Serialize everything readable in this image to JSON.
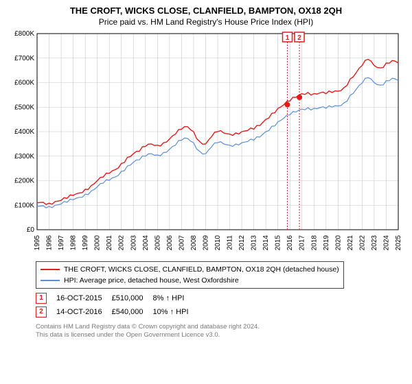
{
  "title": "THE CROFT, WICKS CLOSE, CLANFIELD, BAMPTON, OX18 2QH",
  "subtitle": "Price paid vs. HM Land Registry's House Price Index (HPI)",
  "chart": {
    "type": "line",
    "background_color": "#ffffff",
    "grid_color": "#c7c7c7",
    "axis_color": "#000000",
    "label_fontsize": 10,
    "x_range": [
      1995,
      2025
    ],
    "y_range": [
      0,
      800
    ],
    "y_ticks": [
      "£0",
      "£100K",
      "£200K",
      "£300K",
      "£400K",
      "£500K",
      "£600K",
      "£700K",
      "£800K"
    ],
    "x_ticks": [
      "1995",
      "1996",
      "1997",
      "1998",
      "1999",
      "2000",
      "2001",
      "2002",
      "2003",
      "2004",
      "2005",
      "2006",
      "2007",
      "2008",
      "2009",
      "2010",
      "2011",
      "2012",
      "2013",
      "2014",
      "2015",
      "2016",
      "2017",
      "2018",
      "2019",
      "2020",
      "2021",
      "2022",
      "2023",
      "2024",
      "2025"
    ],
    "series": [
      {
        "name": "THE CROFT, WICKS CLOSE, CLANFIELD, BAMPTON, OX18 2QH (detached house)",
        "color": "#e21b1b",
        "width": 1.4,
        "data": [
          [
            1995,
            110
          ],
          [
            1995.5,
            112
          ],
          [
            1996,
            108
          ],
          [
            1996.5,
            115
          ],
          [
            1997,
            120
          ],
          [
            1997.5,
            128
          ],
          [
            1998,
            140
          ],
          [
            1998.5,
            150
          ],
          [
            1999,
            165
          ],
          [
            1999.5,
            180
          ],
          [
            2000,
            200
          ],
          [
            2000.5,
            215
          ],
          [
            2001,
            230
          ],
          [
            2001.5,
            245
          ],
          [
            2002,
            270
          ],
          [
            2002.5,
            295
          ],
          [
            2003,
            310
          ],
          [
            2003.5,
            320
          ],
          [
            2004,
            340
          ],
          [
            2004.5,
            350
          ],
          [
            2005,
            345
          ],
          [
            2005.5,
            355
          ],
          [
            2006,
            370
          ],
          [
            2006.5,
            390
          ],
          [
            2007,
            410
          ],
          [
            2007.5,
            420
          ],
          [
            2008,
            400
          ],
          [
            2008.5,
            360
          ],
          [
            2009,
            350
          ],
          [
            2009.5,
            380
          ],
          [
            2010,
            400
          ],
          [
            2010.5,
            395
          ],
          [
            2011,
            390
          ],
          [
            2011.5,
            395
          ],
          [
            2012,
            400
          ],
          [
            2012.5,
            405
          ],
          [
            2013,
            410
          ],
          [
            2013.5,
            425
          ],
          [
            2014,
            450
          ],
          [
            2014.5,
            475
          ],
          [
            2015,
            495
          ],
          [
            2015.5,
            510
          ],
          [
            2016,
            525
          ],
          [
            2016.5,
            540
          ],
          [
            2017,
            555
          ],
          [
            2017.5,
            560
          ],
          [
            2018,
            555
          ],
          [
            2018.5,
            558
          ],
          [
            2019,
            555
          ],
          [
            2019.5,
            560
          ],
          [
            2020,
            565
          ],
          [
            2020.5,
            580
          ],
          [
            2021,
            615
          ],
          [
            2021.5,
            640
          ],
          [
            2022,
            670
          ],
          [
            2022.5,
            695
          ],
          [
            2023,
            670
          ],
          [
            2023.5,
            660
          ],
          [
            2024,
            680
          ],
          [
            2024.5,
            690
          ],
          [
            2025,
            680
          ]
        ]
      },
      {
        "name": "HPI: Average price, detached house, West Oxfordshire",
        "color": "#5a8fd6",
        "width": 1.2,
        "data": [
          [
            1995,
            95
          ],
          [
            1995.5,
            98
          ],
          [
            1996,
            95
          ],
          [
            1996.5,
            100
          ],
          [
            1997,
            105
          ],
          [
            1997.5,
            112
          ],
          [
            1998,
            122
          ],
          [
            1998.5,
            132
          ],
          [
            1999,
            145
          ],
          [
            1999.5,
            158
          ],
          [
            2000,
            175
          ],
          [
            2000.5,
            190
          ],
          [
            2001,
            202
          ],
          [
            2001.5,
            215
          ],
          [
            2002,
            238
          ],
          [
            2002.5,
            260
          ],
          [
            2003,
            275
          ],
          [
            2003.5,
            285
          ],
          [
            2004,
            300
          ],
          [
            2004.5,
            310
          ],
          [
            2005,
            305
          ],
          [
            2005.5,
            315
          ],
          [
            2006,
            328
          ],
          [
            2006.5,
            345
          ],
          [
            2007,
            365
          ],
          [
            2007.5,
            372
          ],
          [
            2008,
            355
          ],
          [
            2008.5,
            320
          ],
          [
            2009,
            310
          ],
          [
            2009.5,
            338
          ],
          [
            2010,
            355
          ],
          [
            2010.5,
            350
          ],
          [
            2011,
            345
          ],
          [
            2011.5,
            350
          ],
          [
            2012,
            355
          ],
          [
            2012.5,
            360
          ],
          [
            2013,
            365
          ],
          [
            2013.5,
            378
          ],
          [
            2014,
            400
          ],
          [
            2014.5,
            422
          ],
          [
            2015,
            440
          ],
          [
            2015.5,
            455
          ],
          [
            2016,
            468
          ],
          [
            2016.5,
            480
          ],
          [
            2017,
            492
          ],
          [
            2017.5,
            498
          ],
          [
            2018,
            495
          ],
          [
            2018.5,
            498
          ],
          [
            2019,
            495
          ],
          [
            2019.5,
            500
          ],
          [
            2020,
            505
          ],
          [
            2020.5,
            518
          ],
          [
            2021,
            548
          ],
          [
            2021.5,
            572
          ],
          [
            2022,
            598
          ],
          [
            2022.5,
            620
          ],
          [
            2023,
            600
          ],
          [
            2023.5,
            590
          ],
          [
            2024,
            608
          ],
          [
            2024.5,
            618
          ],
          [
            2025,
            608
          ]
        ]
      }
    ],
    "markers": [
      {
        "label": "1",
        "x": 2015.79,
        "y": 510,
        "dot_color": "#e21b1b",
        "line_color": "#e21b1b"
      },
      {
        "label": "2",
        "x": 2016.79,
        "y": 540,
        "dot_color": "#e21b1b",
        "line_color": "#e21b1b"
      }
    ]
  },
  "legend": {
    "border_color": "#444444",
    "fontsize": 10.5,
    "items": [
      {
        "color": "#e21b1b",
        "label": "THE CROFT, WICKS CLOSE, CLANFIELD, BAMPTON, OX18 2QH (detached house)"
      },
      {
        "color": "#5a8fd6",
        "label": "HPI: Average price, detached house, West Oxfordshire"
      }
    ]
  },
  "transactions": [
    {
      "badge": "1",
      "date": "16-OCT-2015",
      "price": "£510,000",
      "delta": "8% ↑ HPI"
    },
    {
      "badge": "2",
      "date": "14-OCT-2016",
      "price": "£540,000",
      "delta": "10% ↑ HPI"
    }
  ],
  "license_line1": "Contains HM Land Registry data © Crown copyright and database right 2024.",
  "license_line2": "This data is licensed under the Open Government Licence v3.0."
}
